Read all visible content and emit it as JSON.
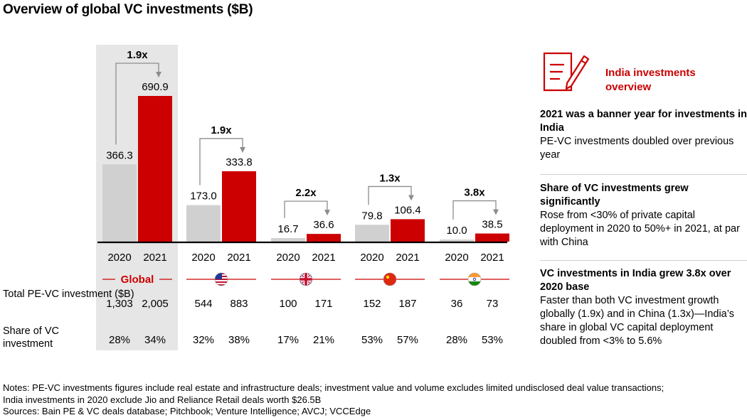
{
  "title": "Overview of global VC investments ($B)",
  "chart_data": {
    "type": "bar",
    "groups": [
      {
        "name": "Global",
        "years": [
          "2020",
          "2021"
        ],
        "values": [
          366.3,
          690.9
        ],
        "value_labels": [
          "366.3",
          "690.9"
        ],
        "multiplier": "1.9x",
        "total_pe_vc": [
          "1,303",
          "2,005"
        ],
        "vc_share": [
          "28%",
          "34%"
        ],
        "flag": "global-text"
      },
      {
        "name": "",
        "years": [
          "2020",
          "2021"
        ],
        "values": [
          173.0,
          333.8
        ],
        "value_labels": [
          "173.0",
          "333.8"
        ],
        "multiplier": "1.9x",
        "total_pe_vc": [
          "544",
          "883"
        ],
        "vc_share": [
          "32%",
          "38%"
        ],
        "flag": "us-flag-icon"
      },
      {
        "name": "",
        "years": [
          "2020",
          "2021"
        ],
        "values": [
          16.7,
          36.6
        ],
        "value_labels": [
          "16.7",
          "36.6"
        ],
        "multiplier": "2.2x",
        "total_pe_vc": [
          "100",
          "171"
        ],
        "vc_share": [
          "17%",
          "21%"
        ],
        "flag": "uk-flag-icon"
      },
      {
        "name": "",
        "years": [
          "2020",
          "2021"
        ],
        "values": [
          79.8,
          106.4
        ],
        "value_labels": [
          "79.8",
          "106.4"
        ],
        "multiplier": "1.3x",
        "total_pe_vc": [
          "152",
          "187"
        ],
        "vc_share": [
          "53%",
          "57%"
        ],
        "flag": "china-flag-icon"
      },
      {
        "name": "",
        "years": [
          "2020",
          "2021"
        ],
        "values": [
          10.0,
          38.5
        ],
        "value_labels": [
          "10.0",
          "38.5"
        ],
        "multiplier": "3.8x",
        "total_pe_vc": [
          "36",
          "73"
        ],
        "vc_share": [
          "28%",
          "53%"
        ],
        "flag": "india-flag-icon"
      }
    ],
    "colors": {
      "2020": "#d0d0d0",
      "2021": "#cc0000",
      "highlight_bg": "#e6e6e6",
      "arrow": "#8c8c8c"
    },
    "row_labels": {
      "total": "Total PE-VC investment ($B)",
      "share": "Share of VC investment"
    }
  },
  "panel": {
    "icon": "document-pencil-icon",
    "title": "India investments overview",
    "sections": [
      {
        "heading": "2021 was a banner year for investments in India",
        "body": "PE-VC investments doubled over previous year"
      },
      {
        "heading": "Share of VC investments grew significantly",
        "body": "Rose from <30% of private capital deployment in 2020 to 50%+ in 2021, at par with China"
      },
      {
        "heading": "VC investments in India grew 3.8x over 2020 base",
        "body": "Faster than both VC investment growth globally (1.9x) and in China (1.3x)—India’s share in global VC capital deployment doubled from <3% to 5.6%"
      }
    ]
  },
  "notes": {
    "line1": "Notes: PE-VC investments figures include real estate and infrastructure deals; investment value and volume excludes limited undisclosed deal value transactions;",
    "line2": "India investments in 2020 exclude Jio and Reliance Retail deals worth $26.5B",
    "line3": "Sources: Bain PE & VC deals database; Pitchbook; Venture Intelligence; AVCJ; VCCEdge"
  }
}
